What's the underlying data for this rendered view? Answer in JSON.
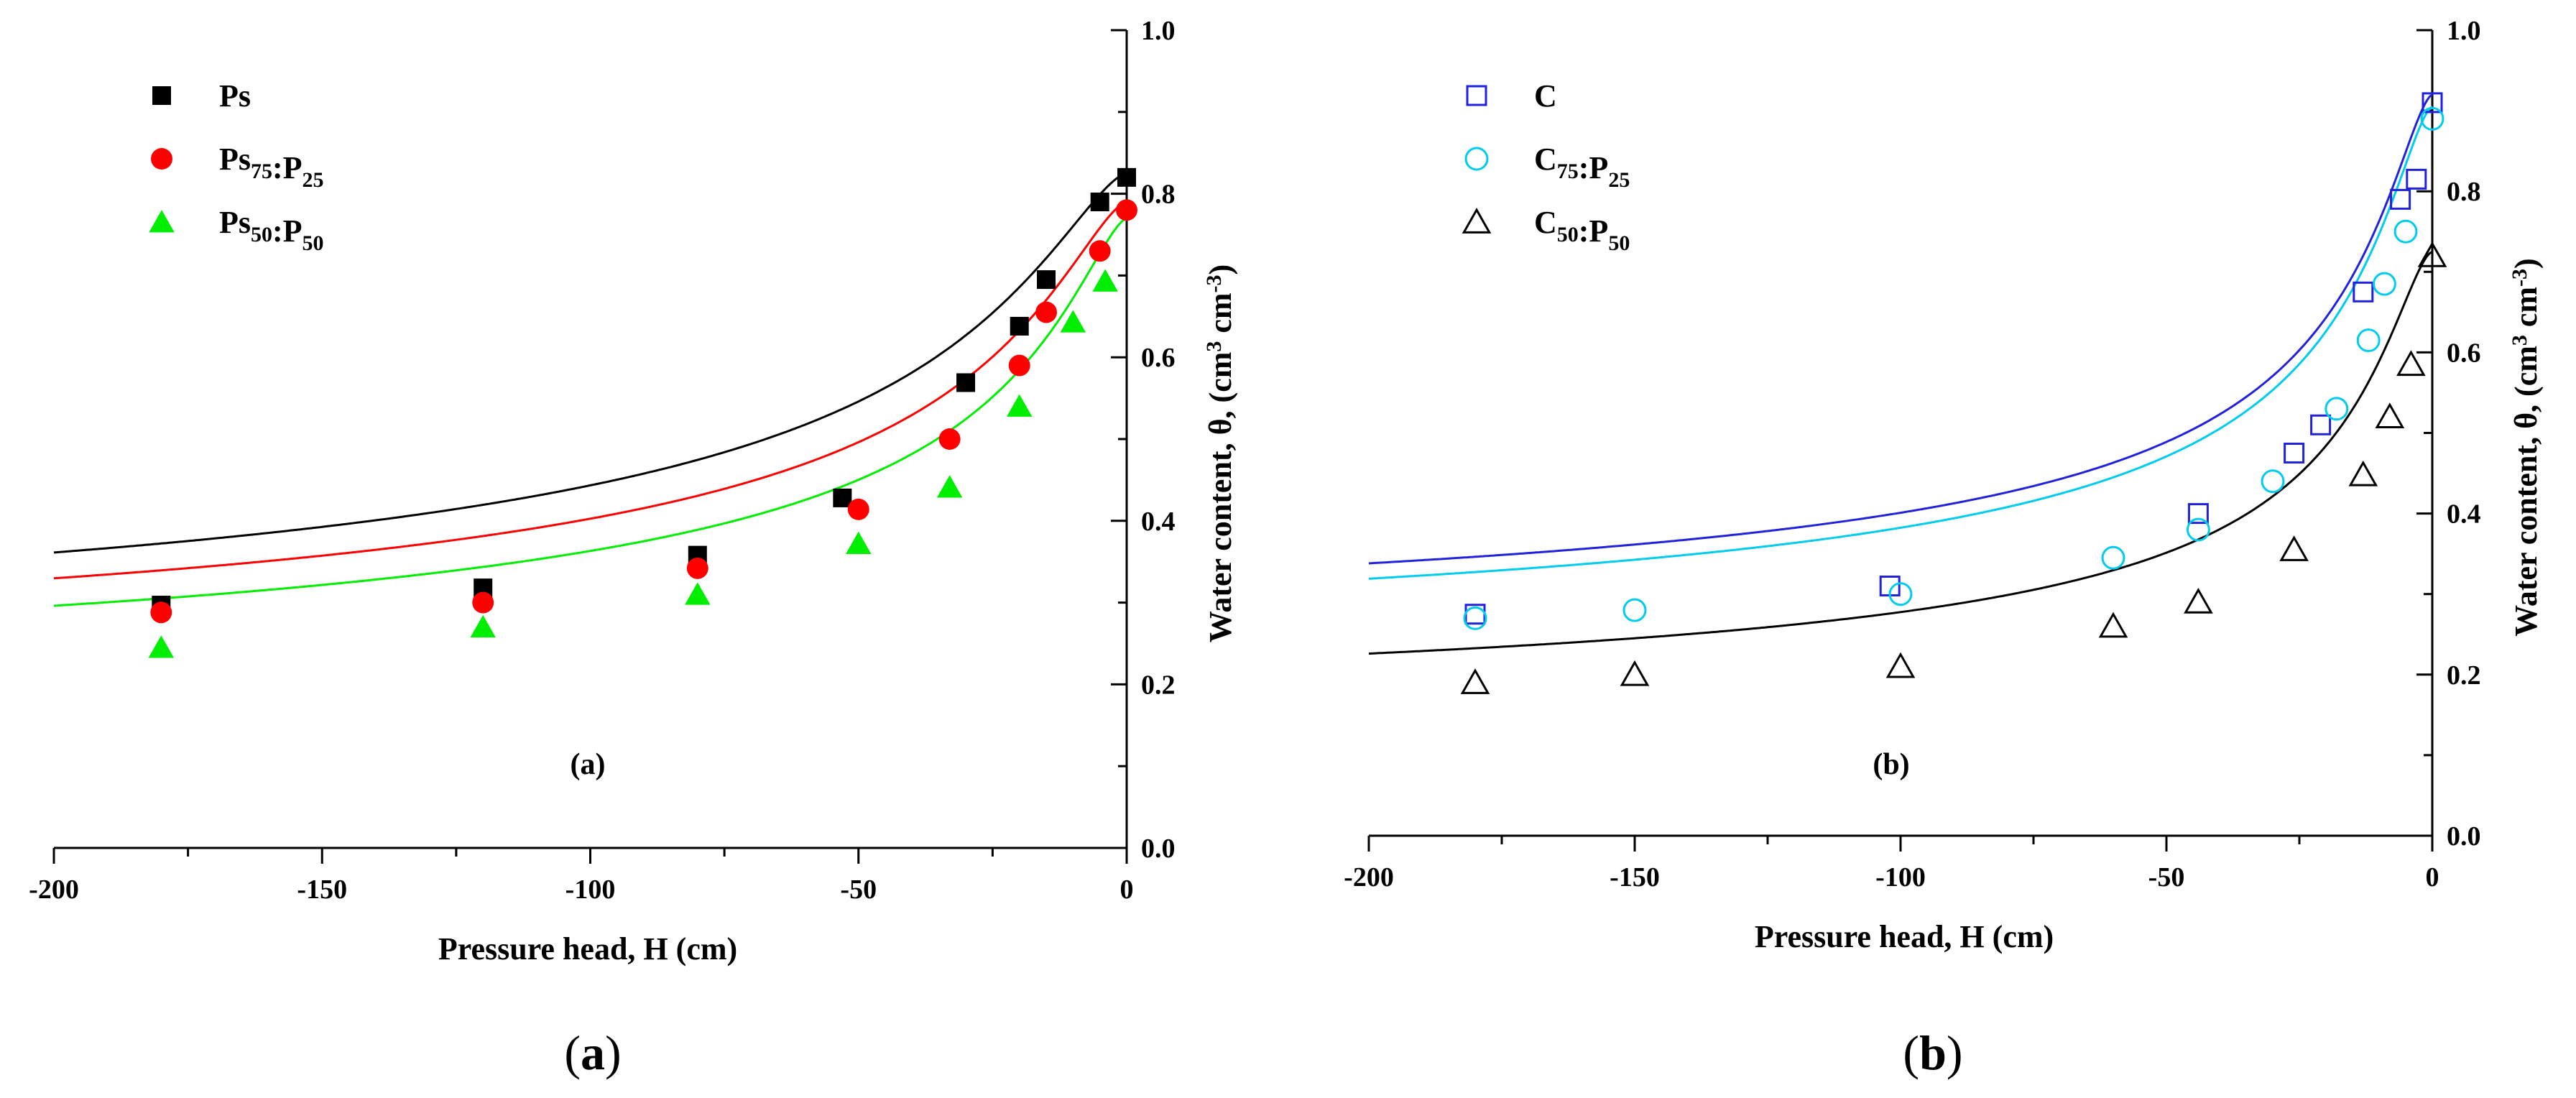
{
  "chart_data": [
    {
      "type": "scatter",
      "panel_label": "(a)",
      "caption": "(a)",
      "xlabel": "Pressure head, H (cm)",
      "ylabel": "Water content, θ, (cm",
      "ylabel_sup1": "3",
      "ylabel_mid": " cm",
      "ylabel_sup2": "-3",
      "ylabel_end": ")",
      "xlim": [
        -200,
        0
      ],
      "ylim": [
        0,
        1
      ],
      "xticks": [
        "-200",
        "-150",
        "-100",
        "-50",
        "0"
      ],
      "yticks": [
        "0.0",
        "0.2",
        "0.4",
        "0.6",
        "0.8",
        "1.0"
      ],
      "legend_position": "top-left",
      "series": [
        {
          "name": "Ps",
          "base": "Ps",
          "sub1": "",
          "mid": "",
          "sub2": "",
          "marker": "square",
          "color": "#000000",
          "filled": true,
          "x": [
            -180,
            -120,
            -80,
            -53,
            -30,
            -20,
            -15,
            -5,
            0
          ],
          "y": [
            0.297,
            0.318,
            0.358,
            0.428,
            0.569,
            0.638,
            0.695,
            0.79,
            0.82
          ],
          "fit": {
            "theta_r": 0.15,
            "theta_s": 0.825,
            "alpha": 0.05,
            "n": 1.5
          }
        },
        {
          "name": "Ps75:P25",
          "base": "Ps",
          "sub1": "75",
          "mid": ":P",
          "sub2": "25",
          "marker": "circle",
          "color": "#ff0000",
          "filled": true,
          "x": [
            -180,
            -120,
            -80,
            -50,
            -33,
            -20,
            -15,
            -5,
            0
          ],
          "y": [
            0.288,
            0.3,
            0.342,
            0.414,
            0.5,
            0.59,
            0.655,
            0.73,
            0.78
          ],
          "fit": {
            "theta_r": 0.145,
            "theta_s": 0.79,
            "alpha": 0.06,
            "n": 1.5
          }
        },
        {
          "name": "Ps50:P50",
          "base": "Ps",
          "sub1": "50",
          "mid": ":P",
          "sub2": "50",
          "marker": "triangle",
          "color": "#00ee00",
          "filled": true,
          "x": [
            -180,
            -120,
            -80,
            -50,
            -33,
            -20,
            -10,
            -4
          ],
          "y": [
            0.245,
            0.27,
            0.31,
            0.372,
            0.441,
            0.54,
            0.643,
            0.693
          ],
          "fit": {
            "theta_r": 0.12,
            "theta_s": 0.77,
            "alpha": 0.075,
            "n": 1.48
          }
        }
      ]
    },
    {
      "type": "scatter",
      "panel_label": "(b)",
      "caption": "(b)",
      "xlabel": "Pressure head, H (cm)",
      "ylabel": "Water content, θ, (cm",
      "ylabel_sup1": "3",
      "ylabel_mid": " cm",
      "ylabel_sup2": "-3",
      "ylabel_end": ")",
      "xlim": [
        -200,
        0
      ],
      "ylim": [
        0,
        1
      ],
      "xticks": [
        "-200",
        "-150",
        "-100",
        "-50",
        "0"
      ],
      "yticks": [
        "0.0",
        "0.2",
        "0.4",
        "0.6",
        "0.8",
        "1.0"
      ],
      "legend_position": "top-left",
      "series": [
        {
          "name": "C",
          "base": "C",
          "sub1": "",
          "mid": "",
          "sub2": "",
          "marker": "square",
          "color": "#2222dd",
          "filled": false,
          "x": [
            -180,
            -102,
            -44,
            -26,
            -21,
            -13,
            -6,
            -3,
            0
          ],
          "y": [
            0.275,
            0.31,
            0.4,
            0.475,
            0.51,
            0.675,
            0.79,
            0.815,
            0.91
          ],
          "fit": {
            "theta_r": 0.2,
            "theta_s": 0.92,
            "alpha": 0.1,
            "n": 1.55
          }
        },
        {
          "name": "C75:P25",
          "base": "C",
          "sub1": "75",
          "mid": ":P",
          "sub2": "25",
          "marker": "circle",
          "color": "#00ccee",
          "filled": false,
          "x": [
            -180,
            -150,
            -100,
            -60,
            -44,
            -30,
            -18,
            -12,
            -9,
            -5,
            0
          ],
          "y": [
            0.27,
            0.28,
            0.3,
            0.345,
            0.38,
            0.44,
            0.53,
            0.615,
            0.685,
            0.75,
            0.89
          ],
          "fit": {
            "theta_r": 0.18,
            "theta_s": 0.905,
            "alpha": 0.1,
            "n": 1.55
          }
        },
        {
          "name": "C50:P50",
          "base": "C",
          "sub1": "50",
          "mid": ":P",
          "sub2": "50",
          "marker": "triangle",
          "color": "#000000",
          "filled": false,
          "x": [
            -180,
            -150,
            -100,
            -60,
            -44,
            -26,
            -13,
            -8,
            -4,
            0
          ],
          "y": [
            0.19,
            0.2,
            0.21,
            0.26,
            0.29,
            0.355,
            0.448,
            0.52,
            0.585,
            0.72
          ],
          "fit": {
            "theta_r": 0.12,
            "theta_s": 0.725,
            "alpha": 0.1,
            "n": 1.58
          }
        }
      ]
    }
  ]
}
